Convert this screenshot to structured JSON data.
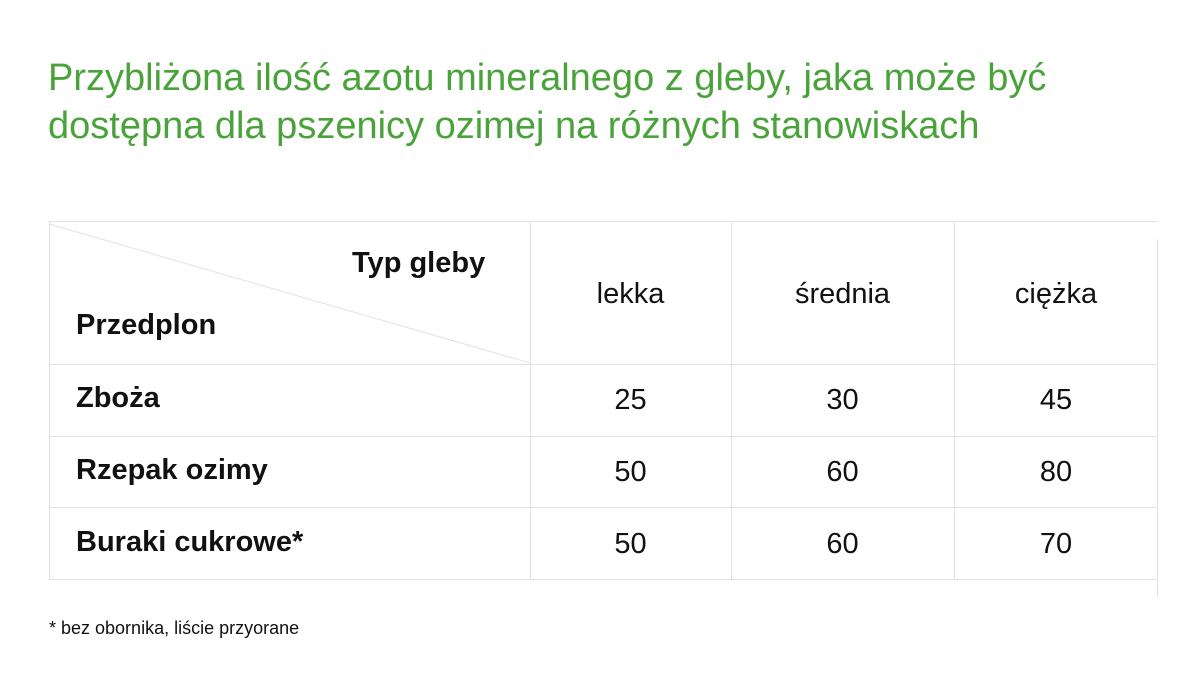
{
  "title": {
    "line1": "Przybliżona ilość azotu mineralnego z gleby, jaka może być",
    "line2": "dostępna dla pszenicy ozimej na różnych stanowiskach"
  },
  "table": {
    "corner_top": "Typ gleby",
    "corner_bottom": "Przedplon",
    "columns": [
      "lekka",
      "średnia",
      "ciężka"
    ],
    "rows": [
      {
        "label": "Zboża",
        "values": [
          "25",
          "30",
          "45"
        ]
      },
      {
        "label": "Rzepak ozimy",
        "values": [
          "50",
          "60",
          "80"
        ]
      },
      {
        "label": "Buraki cukrowe*",
        "values": [
          "50",
          "60",
          "70"
        ]
      }
    ]
  },
  "footnote": "* bez obornika, liście przyorane",
  "colors": {
    "title": "#4aa33a",
    "grid": "#e2e2e2",
    "text": "#111111"
  }
}
